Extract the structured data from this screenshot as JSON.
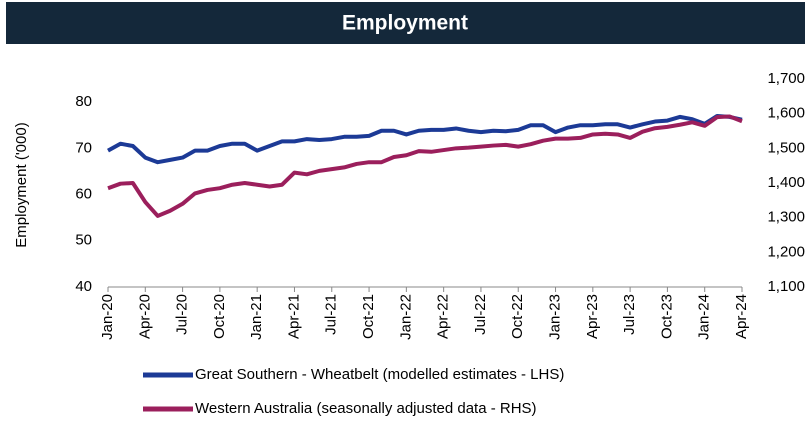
{
  "chart_data": {
    "type": "line",
    "title": "Employment",
    "ylabel": "Employment ('000)",
    "categories": [
      "Jan-20",
      null,
      null,
      "Apr-20",
      null,
      null,
      "Jul-20",
      null,
      null,
      "Oct-20",
      null,
      null,
      "Jan-21",
      null,
      null,
      "Apr-21",
      null,
      null,
      "Jul-21",
      null,
      null,
      "Oct-21",
      null,
      null,
      "Jan-22",
      null,
      null,
      "Apr-22",
      null,
      null,
      "Jul-22",
      null,
      null,
      "Oct-22",
      null,
      null,
      "Jan-23",
      null,
      null,
      "Apr-23",
      null,
      null,
      "Jul-23",
      null,
      null,
      "Oct-23",
      null,
      null,
      "Jan-24",
      null,
      null,
      "Apr-24"
    ],
    "series": [
      {
        "name": "Great Southern - Wheatbelt (modelled estimates - LHS)",
        "color": "#1c3a96",
        "axis": "y",
        "values": [
          69.5,
          71,
          70.5,
          68,
          67,
          67.5,
          68,
          69.5,
          69.5,
          70.5,
          71,
          71,
          69.5,
          70.5,
          71.5,
          71.5,
          72,
          71.8,
          72,
          72.5,
          72.5,
          72.7,
          73.8,
          73.8,
          73,
          73.8,
          74,
          74,
          74.3,
          73.8,
          73.5,
          73.8,
          73.7,
          74,
          75,
          75,
          73.5,
          74.5,
          75,
          75,
          75.2,
          75.2,
          74.5,
          75.2,
          75.8,
          76,
          76.8,
          76.3,
          75.3,
          77,
          76.8,
          76.2
        ]
      },
      {
        "name": "Western Australia (seasonally adjusted data - RHS)",
        "color": "#9b1f5c",
        "axis": "y2",
        "values": [
          1385,
          1398,
          1400,
          1345,
          1305,
          1320,
          1340,
          1370,
          1380,
          1385,
          1395,
          1400,
          1395,
          1390,
          1395,
          1430,
          1425,
          1435,
          1440,
          1445,
          1455,
          1460,
          1460,
          1475,
          1480,
          1492,
          1490,
          1495,
          1500,
          1502,
          1505,
          1508,
          1510,
          1505,
          1512,
          1522,
          1528,
          1528,
          1530,
          1540,
          1542,
          1540,
          1530,
          1548,
          1558,
          1562,
          1568,
          1575,
          1565,
          1590,
          1592,
          1578
        ]
      }
    ],
    "ylim": [
      40,
      85
    ],
    "yticks": [
      40,
      50,
      60,
      70,
      80
    ],
    "y2lim": [
      1100,
      1700
    ],
    "y2ticks": [
      {
        "value": 1100,
        "label": "1,100"
      },
      {
        "value": 1200,
        "label": "1,200"
      },
      {
        "value": 1300,
        "label": "1,300"
      },
      {
        "value": 1400,
        "label": "1,400"
      },
      {
        "value": 1500,
        "label": "1,500"
      },
      {
        "value": 1600,
        "label": "1,600"
      },
      {
        "value": 1700,
        "label": "1,700"
      }
    ]
  }
}
